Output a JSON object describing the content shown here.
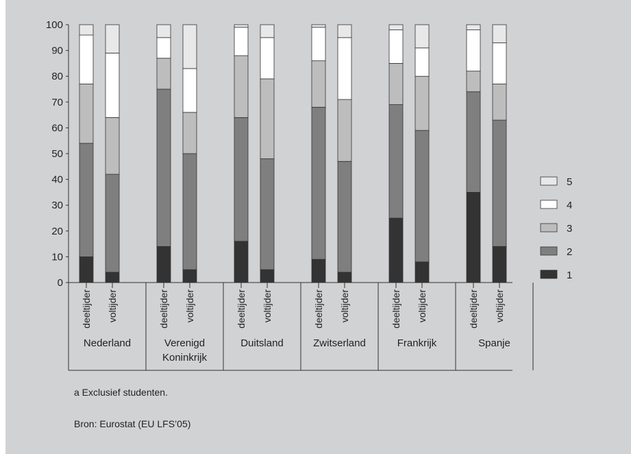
{
  "chart_data": {
    "type": "bar",
    "stacked": true,
    "ylim": [
      0,
      100
    ],
    "yticks": [
      0,
      10,
      20,
      30,
      40,
      50,
      60,
      70,
      80,
      90,
      100
    ],
    "grid": false,
    "legend_position": "right",
    "groups": [
      {
        "country": [
          "Nederland"
        ],
        "bars": [
          {
            "label": "deeltijder",
            "values": [
              10,
              44,
              23,
              19,
              4
            ]
          },
          {
            "label": "voltijder",
            "values": [
              4,
              38,
              22,
              25,
              11
            ]
          }
        ]
      },
      {
        "country": [
          "Verenigd",
          "Koninkrijk"
        ],
        "bars": [
          {
            "label": "deeltijder",
            "values": [
              14,
              61,
              12,
              8,
              5
            ]
          },
          {
            "label": "voltijder",
            "values": [
              5,
              45,
              16,
              17,
              17
            ]
          }
        ]
      },
      {
        "country": [
          "Duitsland"
        ],
        "bars": [
          {
            "label": "deeltijder",
            "values": [
              16,
              48,
              24,
              11,
              1
            ]
          },
          {
            "label": "voltijder",
            "values": [
              5,
              43,
              31,
              16,
              5
            ]
          }
        ]
      },
      {
        "country": [
          "Zwitserland"
        ],
        "bars": [
          {
            "label": "deeltijder",
            "values": [
              9,
              59,
              18,
              13,
              1
            ]
          },
          {
            "label": "voltijder",
            "values": [
              4,
              43,
              24,
              24,
              5
            ]
          }
        ]
      },
      {
        "country": [
          "Frankrijk"
        ],
        "bars": [
          {
            "label": "deeltijder",
            "values": [
              25,
              44,
              16,
              13,
              2
            ]
          },
          {
            "label": "voltijder",
            "values": [
              8,
              51,
              21,
              11,
              9
            ]
          }
        ]
      },
      {
        "country": [
          "Spanje"
        ],
        "bars": [
          {
            "label": "deeltijder",
            "values": [
              35,
              39,
              8,
              16,
              2
            ]
          },
          {
            "label": "voltijder",
            "values": [
              14,
              49,
              14,
              16,
              7
            ]
          }
        ]
      }
    ],
    "series": [
      {
        "name": "1",
        "color": "#333333"
      },
      {
        "name": "2",
        "color": "#7f7f7f"
      },
      {
        "name": "3",
        "color": "#bdbdbd"
      },
      {
        "name": "4",
        "color": "#ffffff"
      },
      {
        "name": "5",
        "color": "#e8e8e8"
      }
    ]
  },
  "footnote": "a   Exclusief studenten.",
  "source": "Bron: Eurostat (EU LFS’05)"
}
